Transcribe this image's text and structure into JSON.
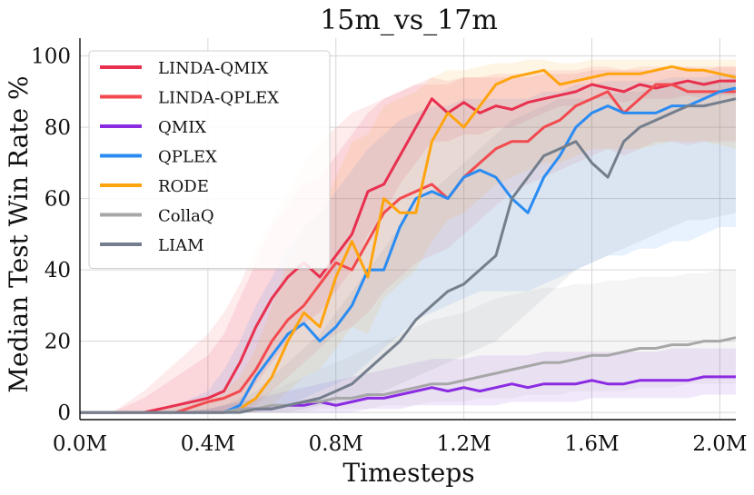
{
  "chart_data": {
    "type": "line",
    "title": "15m_vs_17m",
    "xlabel": "Timesteps",
    "ylabel": "Median Test Win Rate %",
    "xlim": [
      0,
      2.05
    ],
    "ylim": [
      -2,
      105
    ],
    "x_ticks": [
      0,
      0.4,
      0.8,
      1.2,
      1.6,
      2.0
    ],
    "x_tick_labels": [
      "0.0M",
      "0.4M",
      "0.8M",
      "1.2M",
      "1.6M",
      "2.0M"
    ],
    "y_ticks": [
      0,
      20,
      40,
      60,
      80,
      100
    ],
    "y_tick_labels": [
      "0",
      "20",
      "40",
      "60",
      "80",
      "100"
    ],
    "legend_position": "top-left",
    "x": [
      0,
      0.1,
      0.2,
      0.3,
      0.4,
      0.45,
      0.5,
      0.55,
      0.6,
      0.65,
      0.7,
      0.75,
      0.8,
      0.85,
      0.9,
      0.95,
      1.0,
      1.05,
      1.1,
      1.15,
      1.2,
      1.25,
      1.3,
      1.35,
      1.4,
      1.45,
      1.5,
      1.55,
      1.6,
      1.65,
      1.7,
      1.75,
      1.8,
      1.85,
      1.9,
      1.95,
      2.0,
      2.05
    ],
    "series": [
      {
        "name": "LINDA-QMIX",
        "color": "#e8304f",
        "values": [
          0,
          0,
          0,
          2,
          4,
          6,
          14,
          24,
          32,
          38,
          42,
          38,
          44,
          50,
          62,
          64,
          72,
          80,
          88,
          84,
          87,
          84,
          86,
          85,
          87,
          88,
          89,
          90,
          92,
          91,
          90,
          92,
          91,
          92,
          93,
          92,
          93,
          93
        ],
        "band_lower": [
          0,
          0,
          0,
          0,
          0,
          0,
          2,
          8,
          14,
          20,
          25,
          28,
          34,
          40,
          50,
          56,
          64,
          70,
          76,
          76,
          78,
          78,
          80,
          80,
          82,
          84,
          86,
          86,
          88,
          88,
          87,
          88,
          88,
          88,
          89,
          88,
          89,
          89
        ],
        "band_upper": [
          0,
          0,
          4,
          10,
          16,
          22,
          32,
          42,
          52,
          58,
          64,
          66,
          72,
          78,
          84,
          88,
          90,
          92,
          94,
          93,
          94,
          94,
          94,
          94,
          94,
          95,
          95,
          95,
          96,
          96,
          96,
          96,
          96,
          96,
          97,
          96,
          97,
          97
        ]
      },
      {
        "name": "LINDA-QPLEX",
        "color": "#f24a4f",
        "values": [
          0,
          0,
          0,
          0,
          3,
          4,
          6,
          12,
          20,
          26,
          30,
          36,
          42,
          40,
          48,
          56,
          60,
          62,
          64,
          60,
          66,
          70,
          74,
          76,
          76,
          80,
          82,
          86,
          88,
          90,
          84,
          88,
          92,
          92,
          90,
          90,
          90,
          90
        ],
        "band_lower": [
          0,
          0,
          0,
          0,
          0,
          0,
          0,
          2,
          6,
          10,
          14,
          18,
          22,
          24,
          28,
          34,
          38,
          42,
          44,
          46,
          50,
          54,
          58,
          62,
          64,
          66,
          68,
          70,
          72,
          74,
          72,
          74,
          76,
          76,
          75,
          76,
          76,
          76
        ],
        "band_upper": [
          0,
          0,
          6,
          14,
          22,
          28,
          36,
          46,
          54,
          62,
          70,
          76,
          80,
          84,
          86,
          88,
          90,
          92,
          92,
          92,
          94,
          94,
          95,
          95,
          95,
          96,
          96,
          96,
          97,
          97,
          96,
          97,
          97,
          97,
          97,
          97,
          97,
          97
        ]
      },
      {
        "name": "QMIX",
        "color": "#8a2be2",
        "values": [
          0,
          0,
          0,
          0,
          0,
          0,
          1,
          1,
          1,
          2,
          2,
          3,
          2,
          3,
          4,
          4,
          5,
          6,
          7,
          6,
          7,
          6,
          7,
          8,
          7,
          8,
          8,
          8,
          9,
          8,
          8,
          9,
          9,
          9,
          9,
          10,
          10,
          10
        ],
        "band_lower": [
          0,
          0,
          0,
          0,
          0,
          0,
          0,
          0,
          0,
          0,
          0,
          0,
          0,
          0,
          1,
          1,
          1,
          2,
          2,
          2,
          2,
          2,
          2,
          3,
          3,
          3,
          3,
          3,
          4,
          4,
          4,
          4,
          4,
          4,
          4,
          5,
          5,
          5
        ],
        "band_upper": [
          0,
          0,
          0,
          0,
          1,
          2,
          3,
          4,
          5,
          6,
          7,
          8,
          9,
          10,
          11,
          12,
          13,
          14,
          15,
          15,
          15,
          16,
          16,
          16,
          16,
          17,
          17,
          17,
          17,
          17,
          17,
          17,
          17,
          18,
          18,
          18,
          18,
          18
        ]
      },
      {
        "name": "QPLEX",
        "color": "#2a8cf2",
        "values": [
          0,
          0,
          0,
          0,
          0,
          0,
          2,
          10,
          16,
          22,
          25,
          20,
          24,
          30,
          40,
          40,
          52,
          60,
          62,
          60,
          66,
          68,
          66,
          60,
          56,
          66,
          72,
          80,
          84,
          86,
          84,
          84,
          84,
          86,
          86,
          88,
          90,
          91
        ],
        "band_lower": [
          0,
          0,
          0,
          0,
          0,
          0,
          0,
          0,
          1,
          2,
          4,
          6,
          8,
          10,
          14,
          18,
          22,
          26,
          28,
          30,
          32,
          34,
          34,
          34,
          34,
          36,
          38,
          40,
          42,
          44,
          44,
          46,
          46,
          48,
          48,
          50,
          52,
          52
        ],
        "band_upper": [
          0,
          0,
          0,
          2,
          6,
          12,
          20,
          30,
          38,
          46,
          52,
          56,
          62,
          68,
          74,
          78,
          82,
          84,
          86,
          86,
          88,
          88,
          88,
          88,
          88,
          90,
          90,
          92,
          92,
          93,
          93,
          93,
          93,
          94,
          94,
          94,
          95,
          95
        ]
      },
      {
        "name": "RODE",
        "color": "#ffa40e",
        "values": [
          0,
          0,
          0,
          0,
          0,
          0,
          1,
          4,
          10,
          20,
          28,
          24,
          38,
          48,
          38,
          60,
          56,
          56,
          76,
          84,
          80,
          86,
          92,
          94,
          95,
          96,
          92,
          93,
          94,
          95,
          95,
          95,
          96,
          97,
          96,
          96,
          95,
          94
        ],
        "band_lower": [
          0,
          0,
          0,
          0,
          0,
          0,
          0,
          0,
          2,
          6,
          10,
          12,
          18,
          24,
          22,
          32,
          36,
          40,
          48,
          54,
          56,
          60,
          64,
          66,
          68,
          70,
          70,
          72,
          74,
          74,
          74,
          74,
          75,
          76,
          76,
          76,
          75,
          74
        ],
        "band_upper": [
          0,
          0,
          0,
          2,
          4,
          6,
          10,
          18,
          30,
          42,
          52,
          56,
          66,
          76,
          78,
          86,
          88,
          90,
          94,
          96,
          96,
          97,
          98,
          98,
          99,
          99,
          98,
          98,
          99,
          99,
          99,
          99,
          99,
          99,
          99,
          99,
          99,
          99
        ]
      },
      {
        "name": "CollaQ",
        "color": "#a7a7a7",
        "values": [
          0,
          0,
          0,
          0,
          0,
          0,
          1,
          1,
          2,
          2,
          3,
          3,
          4,
          4,
          5,
          5,
          6,
          7,
          8,
          8,
          9,
          10,
          11,
          12,
          13,
          14,
          14,
          15,
          16,
          16,
          17,
          18,
          18,
          19,
          19,
          20,
          20,
          21
        ],
        "band_lower": [
          0,
          0,
          0,
          0,
          0,
          0,
          0,
          0,
          0,
          0,
          0,
          1,
          1,
          1,
          1,
          2,
          2,
          2,
          3,
          3,
          3,
          4,
          4,
          4,
          5,
          5,
          5,
          6,
          6,
          6,
          6,
          7,
          7,
          7,
          8,
          8,
          8,
          8
        ],
        "band_upper": [
          0,
          0,
          0,
          0,
          1,
          2,
          3,
          4,
          6,
          8,
          10,
          12,
          14,
          16,
          18,
          20,
          22,
          24,
          26,
          27,
          28,
          30,
          32,
          33,
          34,
          35,
          35,
          36,
          36,
          37,
          37,
          38,
          38,
          38,
          39,
          39,
          40,
          40
        ]
      },
      {
        "name": "LIAM",
        "color": "#747e8c",
        "values": [
          0,
          0,
          0,
          0,
          0,
          0,
          0,
          1,
          1,
          2,
          3,
          4,
          6,
          8,
          12,
          16,
          20,
          26,
          30,
          34,
          36,
          40,
          44,
          60,
          66,
          72,
          74,
          76,
          70,
          66,
          76,
          80,
          82,
          84,
          86,
          86,
          87,
          88
        ],
        "band_lower": [
          0,
          0,
          0,
          0,
          0,
          0,
          0,
          0,
          0,
          0,
          1,
          2,
          2,
          3,
          4,
          6,
          8,
          10,
          12,
          14,
          16,
          18,
          20,
          24,
          28,
          32,
          36,
          40,
          42,
          44,
          46,
          48,
          50,
          52,
          54,
          54,
          55,
          56
        ],
        "band_upper": [
          0,
          0,
          0,
          0,
          1,
          2,
          4,
          6,
          10,
          14,
          18,
          22,
          28,
          34,
          40,
          46,
          52,
          58,
          62,
          66,
          70,
          74,
          78,
          82,
          84,
          86,
          88,
          88,
          88,
          89,
          90,
          90,
          91,
          92,
          92,
          93,
          93,
          94
        ]
      }
    ]
  }
}
